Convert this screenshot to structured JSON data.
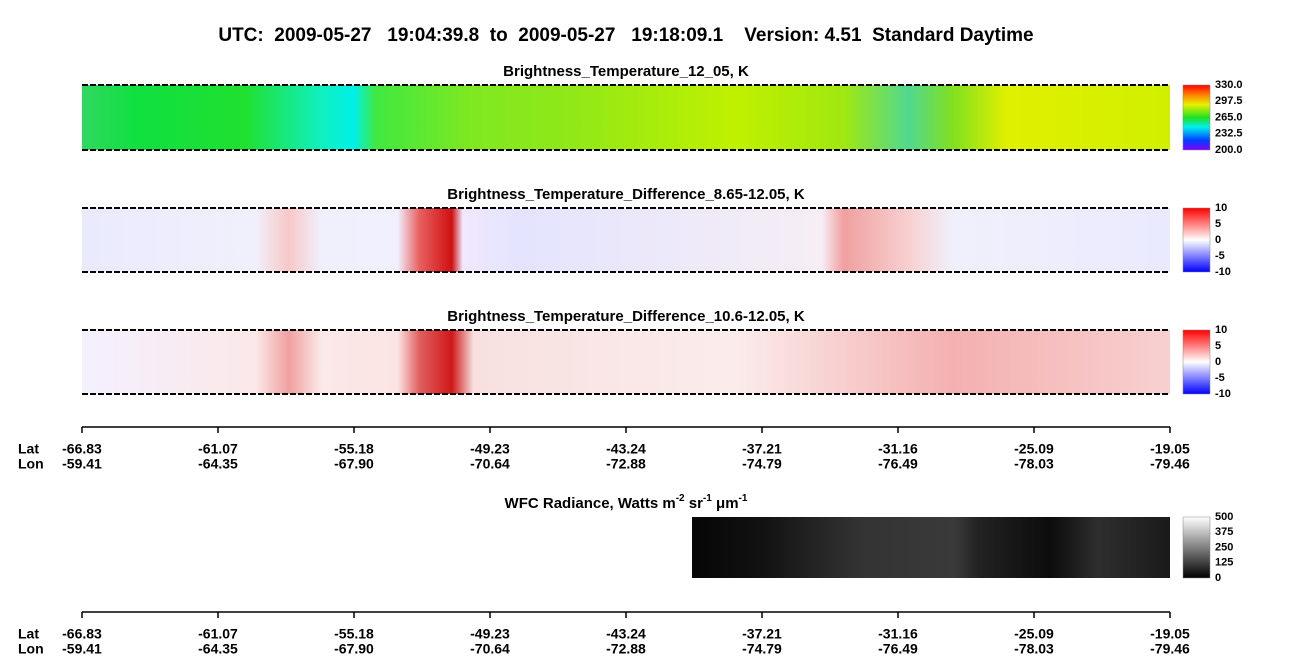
{
  "title": "UTC:  2009-05-27   19:04:39.8  to  2009-05-27   19:18:09.1    Version: 4.51  Standard Daytime",
  "panels": [
    {
      "title": "Brightness_Temperature_12_05, K",
      "colorbar": [
        "330.0",
        "297.5",
        "265.0",
        "232.5",
        "200.0"
      ]
    },
    {
      "title": "Brightness_Temperature_Difference_8.65-12.05, K",
      "colorbar": [
        "10",
        "5",
        "0",
        "-5",
        "-10"
      ]
    },
    {
      "title": "Brightness_Temperature_Difference_10.6-12.05, K",
      "colorbar": [
        "10",
        "5",
        "0",
        "-5",
        "-10"
      ]
    },
    {
      "title_parts": [
        "WFC Radiance, Watts m",
        "-2",
        " sr",
        "-1",
        " μm",
        "-1"
      ],
      "colorbar": [
        "500",
        "375",
        "250",
        "125",
        "0"
      ]
    }
  ],
  "axes": [
    {
      "lat_label": "Lat",
      "lon_label": "Lon",
      "lat": [
        "-66.83",
        "-61.07",
        "-55.18",
        "-49.23",
        "-43.24",
        "-37.21",
        "-31.16",
        "-25.09",
        "-19.05"
      ],
      "lon": [
        "-59.41",
        "-64.35",
        "-67.90",
        "-70.64",
        "-72.88",
        "-74.79",
        "-76.49",
        "-78.03",
        "-79.46"
      ]
    },
    {
      "lat_label": "Lat",
      "lon_label": "Lon",
      "lat": [
        "-66.83",
        "-61.07",
        "-55.18",
        "-49.23",
        "-43.24",
        "-37.21",
        "-31.16",
        "-25.09",
        "-19.05"
      ],
      "lon": [
        "-59.41",
        "-64.35",
        "-67.90",
        "-70.64",
        "-72.88",
        "-74.79",
        "-76.49",
        "-78.03",
        "-79.46"
      ]
    }
  ]
}
